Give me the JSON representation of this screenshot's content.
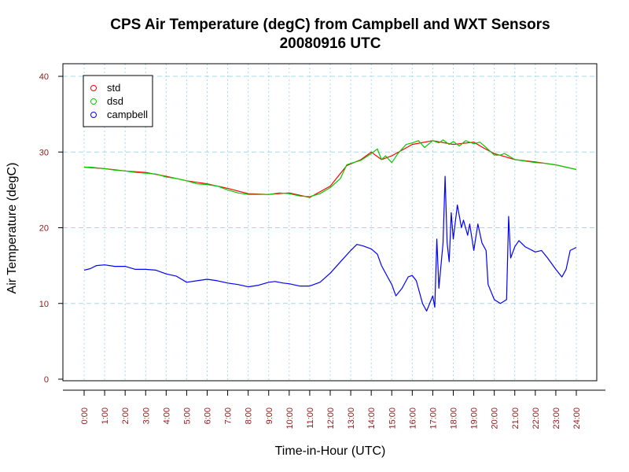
{
  "chart_data": {
    "type": "line",
    "title": "CPS Air Temperature (degC) from Campbell and WXT Sensors",
    "subtitle": "20080916  UTC",
    "xlabel": "Time-in-Hour (UTC)",
    "ylabel": "Air Temperature (degC)",
    "xlim": [
      0,
      24
    ],
    "ylim": [
      0,
      40
    ],
    "grid": true,
    "legend_position": "top-left",
    "x_ticks": [
      "0:00",
      "1:00",
      "2:00",
      "3:00",
      "4:00",
      "5:00",
      "6:00",
      "7:00",
      "8:00",
      "9:00",
      "10:00",
      "11:00",
      "12:00",
      "13:00",
      "14:00",
      "15:00",
      "16:00",
      "17:00",
      "18:00",
      "19:00",
      "20:00",
      "21:00",
      "22:00",
      "23:00",
      "24:00"
    ],
    "y_ticks": [
      0,
      10,
      20,
      30,
      40
    ],
    "series": [
      {
        "name": "std",
        "color": "#ff0000",
        "points": [
          [
            0,
            28.0
          ],
          [
            1,
            27.8
          ],
          [
            2,
            27.5
          ],
          [
            3,
            27.3
          ],
          [
            4,
            26.8
          ],
          [
            4.5,
            26.5
          ],
          [
            5,
            26.2
          ],
          [
            6,
            25.8
          ],
          [
            7,
            25.2
          ],
          [
            8,
            24.5
          ],
          [
            9,
            24.4
          ],
          [
            10,
            24.6
          ],
          [
            11,
            24.0
          ],
          [
            12,
            25.5
          ],
          [
            12.8,
            28.2
          ],
          [
            13.5,
            29.0
          ],
          [
            14,
            30.0
          ],
          [
            14.5,
            29.0
          ],
          [
            15,
            29.5
          ],
          [
            16,
            31.0
          ],
          [
            17,
            31.5
          ],
          [
            18,
            31.0
          ],
          [
            19,
            31.3
          ],
          [
            19.5,
            30.5
          ],
          [
            20,
            29.8
          ],
          [
            21,
            29.0
          ],
          [
            22,
            28.7
          ],
          [
            23,
            28.3
          ],
          [
            24,
            27.7
          ]
        ]
      },
      {
        "name": "dsd",
        "color": "#00cc00",
        "points": [
          [
            0,
            28.0
          ],
          [
            0.3,
            28.0
          ],
          [
            1,
            27.8
          ],
          [
            1.5,
            27.6
          ],
          [
            2,
            27.5
          ],
          [
            2.5,
            27.3
          ],
          [
            3,
            27.2
          ],
          [
            3.5,
            27.1
          ],
          [
            4,
            26.7
          ],
          [
            4.5,
            26.5
          ],
          [
            5,
            26.2
          ],
          [
            5.5,
            25.8
          ],
          [
            6,
            25.7
          ],
          [
            6.5,
            25.5
          ],
          [
            7,
            25.0
          ],
          [
            7.5,
            24.6
          ],
          [
            8,
            24.4
          ],
          [
            8.5,
            24.4
          ],
          [
            9,
            24.4
          ],
          [
            9.5,
            24.6
          ],
          [
            10,
            24.5
          ],
          [
            10.5,
            24.2
          ],
          [
            11,
            24.1
          ],
          [
            11.5,
            24.5
          ],
          [
            12,
            25.3
          ],
          [
            12.5,
            26.5
          ],
          [
            12.8,
            28.3
          ],
          [
            13,
            28.5
          ],
          [
            13.5,
            28.9
          ],
          [
            14,
            29.8
          ],
          [
            14.3,
            30.4
          ],
          [
            14.5,
            29.0
          ],
          [
            14.7,
            29.5
          ],
          [
            15,
            28.6
          ],
          [
            15.3,
            29.8
          ],
          [
            15.7,
            31.0
          ],
          [
            16,
            31.2
          ],
          [
            16.3,
            31.5
          ],
          [
            16.6,
            30.6
          ],
          [
            17,
            31.5
          ],
          [
            17.3,
            31.2
          ],
          [
            17.5,
            31.6
          ],
          [
            17.8,
            31.0
          ],
          [
            18,
            31.4
          ],
          [
            18.3,
            30.8
          ],
          [
            18.6,
            31.5
          ],
          [
            19,
            31.1
          ],
          [
            19.3,
            31.3
          ],
          [
            19.6,
            30.6
          ],
          [
            20,
            29.6
          ],
          [
            20.3,
            29.6
          ],
          [
            20.5,
            29.8
          ],
          [
            21,
            29.0
          ],
          [
            21.5,
            28.8
          ],
          [
            22,
            28.6
          ],
          [
            22.5,
            28.5
          ],
          [
            23,
            28.3
          ],
          [
            23.5,
            28.0
          ],
          [
            24,
            27.7
          ]
        ]
      },
      {
        "name": "campbell",
        "color": "#0000ff",
        "points": [
          [
            0,
            14.4
          ],
          [
            0.3,
            14.6
          ],
          [
            0.6,
            15.0
          ],
          [
            1,
            15.1
          ],
          [
            1.5,
            14.9
          ],
          [
            2,
            14.9
          ],
          [
            2.5,
            14.5
          ],
          [
            3,
            14.5
          ],
          [
            3.5,
            14.4
          ],
          [
            4,
            13.9
          ],
          [
            4.5,
            13.6
          ],
          [
            5,
            12.8
          ],
          [
            5.5,
            13.0
          ],
          [
            6,
            13.2
          ],
          [
            6.5,
            13.0
          ],
          [
            7,
            12.7
          ],
          [
            7.5,
            12.5
          ],
          [
            8,
            12.2
          ],
          [
            8.5,
            12.4
          ],
          [
            9,
            12.8
          ],
          [
            9.3,
            12.9
          ],
          [
            9.7,
            12.7
          ],
          [
            10,
            12.6
          ],
          [
            10.5,
            12.3
          ],
          [
            11,
            12.3
          ],
          [
            11.5,
            12.8
          ],
          [
            12,
            14.0
          ],
          [
            12.5,
            15.5
          ],
          [
            13,
            17.0
          ],
          [
            13.3,
            17.8
          ],
          [
            13.6,
            17.6
          ],
          [
            14,
            17.2
          ],
          [
            14.3,
            16.5
          ],
          [
            14.5,
            15.0
          ],
          [
            14.8,
            13.5
          ],
          [
            15,
            12.5
          ],
          [
            15.2,
            11.0
          ],
          [
            15.5,
            12.0
          ],
          [
            15.8,
            13.5
          ],
          [
            16,
            13.7
          ],
          [
            16.2,
            13.0
          ],
          [
            16.5,
            10.0
          ],
          [
            16.7,
            9.0
          ],
          [
            17,
            11.0
          ],
          [
            17.1,
            9.5
          ],
          [
            17.2,
            18.5
          ],
          [
            17.3,
            12.0
          ],
          [
            17.5,
            18.0
          ],
          [
            17.6,
            26.8
          ],
          [
            17.7,
            18.0
          ],
          [
            17.8,
            15.5
          ],
          [
            17.9,
            22.0
          ],
          [
            18.0,
            18.5
          ],
          [
            18.2,
            23.0
          ],
          [
            18.4,
            20.0
          ],
          [
            18.5,
            21.0
          ],
          [
            18.7,
            19.0
          ],
          [
            18.8,
            20.5
          ],
          [
            19,
            17.0
          ],
          [
            19.2,
            20.5
          ],
          [
            19.4,
            18.0
          ],
          [
            19.6,
            17.0
          ],
          [
            19.7,
            12.5
          ],
          [
            20,
            10.5
          ],
          [
            20.3,
            10.0
          ],
          [
            20.6,
            10.5
          ],
          [
            20.7,
            21.5
          ],
          [
            20.8,
            16.0
          ],
          [
            21,
            17.5
          ],
          [
            21.2,
            18.3
          ],
          [
            21.5,
            17.5
          ],
          [
            22,
            16.8
          ],
          [
            22.3,
            17.0
          ],
          [
            22.6,
            16.0
          ],
          [
            23,
            14.5
          ],
          [
            23.3,
            13.5
          ],
          [
            23.5,
            14.5
          ],
          [
            23.7,
            17.0
          ],
          [
            24,
            17.4
          ]
        ]
      }
    ]
  }
}
